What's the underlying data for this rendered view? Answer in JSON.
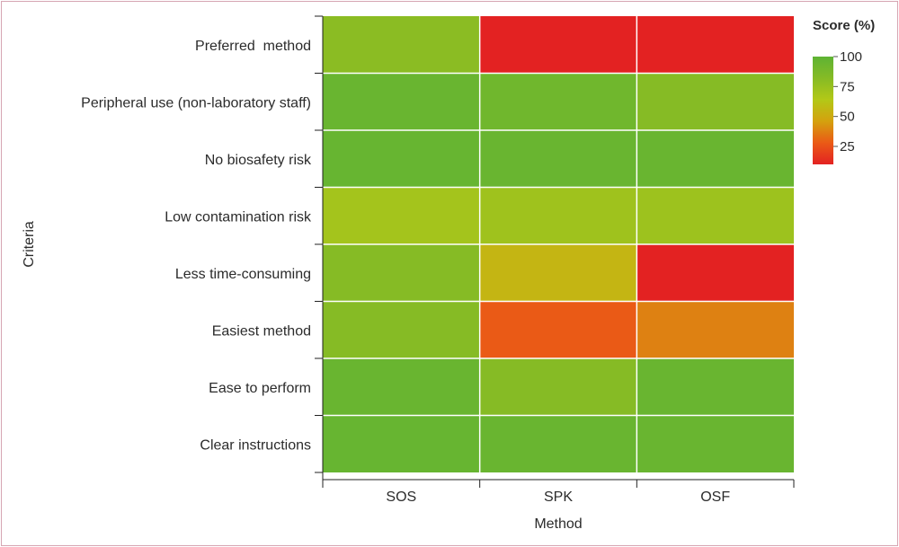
{
  "chart_data": {
    "type": "heatmap",
    "xlabel": "Method",
    "ylabel": "Criteria",
    "columns": [
      "SOS",
      "SPK",
      "OSF"
    ],
    "rows": [
      "Preferred  method",
      "Peripheral use (non-laboratory staff)",
      "No biosafety risk",
      "Low contamination risk",
      "Less time-consuming",
      "Easiest method",
      "Ease to perform",
      "Clear instructions"
    ],
    "values": [
      [
        80,
        10,
        10
      ],
      [
        95,
        92,
        82
      ],
      [
        96,
        95,
        95
      ],
      [
        70,
        72,
        73
      ],
      [
        82,
        55,
        10
      ],
      [
        82,
        28,
        38
      ],
      [
        95,
        82,
        95
      ],
      [
        96,
        95,
        95
      ]
    ],
    "colorbar": {
      "title": "Score (%)",
      "ticks": [
        "100",
        "75",
        "50",
        "25"
      ],
      "tick_values": [
        100,
        75,
        50,
        25
      ],
      "range": [
        10,
        100
      ],
      "colors": [
        "#e32222",
        "#ea5a16",
        "#d4a10e",
        "#b3c817",
        "#86bb25",
        "#5eb334"
      ]
    }
  }
}
